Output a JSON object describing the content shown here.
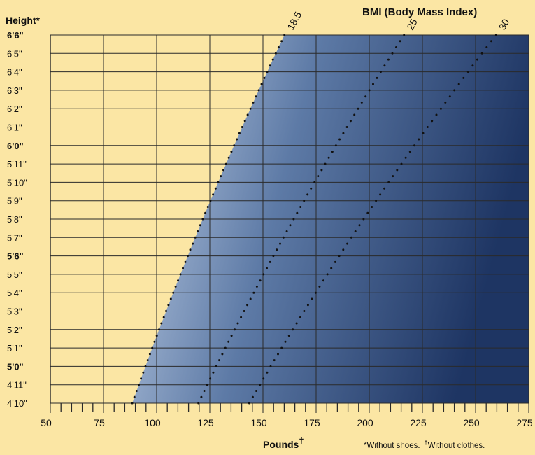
{
  "chart_data": {
    "type": "area",
    "title": "BMI (Body Mass Index)",
    "ylabel": "Height*",
    "xlabel": "Pounds",
    "xlabel_mark": "†",
    "footnote_shoes": "*Without shoes.",
    "footnote_clothes_mark": "†",
    "footnote_clothes": "Without clothes.",
    "xlim": [
      50,
      275
    ],
    "x_ticks": [
      50,
      75,
      100,
      125,
      150,
      175,
      200,
      225,
      250,
      275
    ],
    "x_minor_step": 5,
    "ylim_inches": [
      58,
      78
    ],
    "y_ticks": [
      {
        "inches": 78,
        "label": "6'6\"",
        "bold": true
      },
      {
        "inches": 77,
        "label": "6'5\"",
        "bold": false
      },
      {
        "inches": 76,
        "label": "6'4\"",
        "bold": false
      },
      {
        "inches": 75,
        "label": "6'3\"",
        "bold": false
      },
      {
        "inches": 74,
        "label": "6'2\"",
        "bold": false
      },
      {
        "inches": 73,
        "label": "6'1\"",
        "bold": false
      },
      {
        "inches": 72,
        "label": "6'0\"",
        "bold": true
      },
      {
        "inches": 71,
        "label": "5'11\"",
        "bold": false
      },
      {
        "inches": 70,
        "label": "5'10\"",
        "bold": false
      },
      {
        "inches": 69,
        "label": "5'9\"",
        "bold": false
      },
      {
        "inches": 68,
        "label": "5'8\"",
        "bold": false
      },
      {
        "inches": 67,
        "label": "5'7\"",
        "bold": false
      },
      {
        "inches": 66,
        "label": "5'6\"",
        "bold": true
      },
      {
        "inches": 65,
        "label": "5'5\"",
        "bold": false
      },
      {
        "inches": 64,
        "label": "5'4\"",
        "bold": false
      },
      {
        "inches": 63,
        "label": "5'3\"",
        "bold": false
      },
      {
        "inches": 62,
        "label": "5'2\"",
        "bold": false
      },
      {
        "inches": 61,
        "label": "5'1\"",
        "bold": false
      },
      {
        "inches": 60,
        "label": "5'0\"",
        "bold": true
      },
      {
        "inches": 59,
        "label": "4'11\"",
        "bold": false
      },
      {
        "inches": 58,
        "label": "4'10\"",
        "bold": false
      }
    ],
    "bmi_lines": [
      {
        "label": "18.5",
        "bmi": 18.5
      },
      {
        "label": "25",
        "bmi": 25
      },
      {
        "label": "30",
        "bmi": 30
      }
    ],
    "colors": {
      "background": "#fbe6a4",
      "grid": "#2a2a2a",
      "shade_light": "#c4d3e8",
      "shade_mid": "#5d7aa6",
      "shade_dark": "#1e3563",
      "dots": "#111111"
    }
  }
}
